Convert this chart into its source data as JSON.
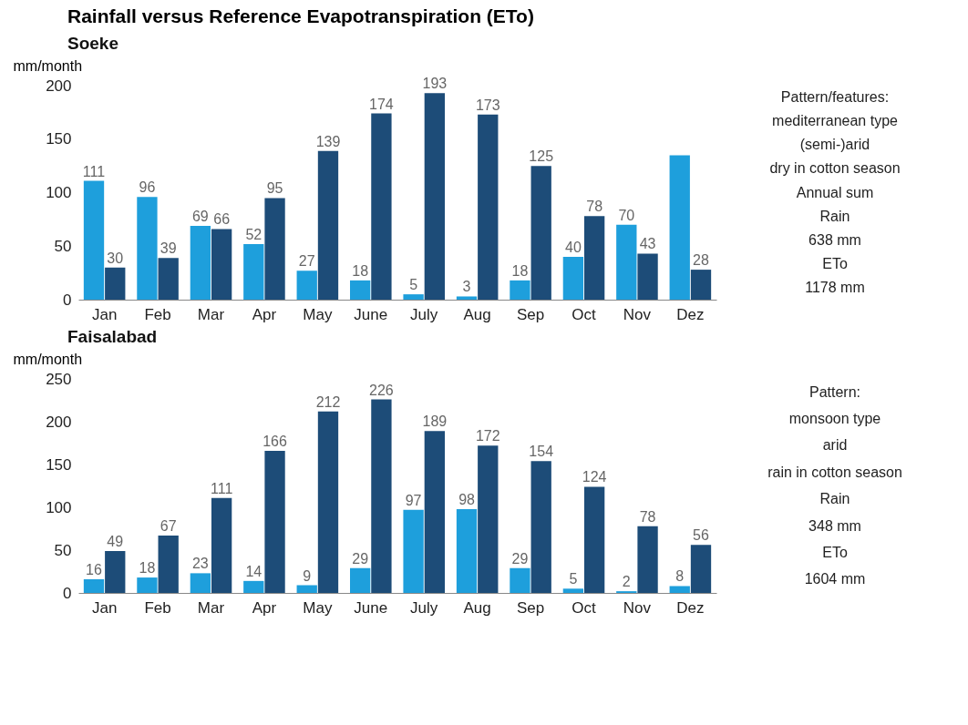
{
  "chart_data": [
    {
      "type": "bar",
      "title": "Rainfall versus Reference Evapotranspiration (ETo)",
      "subtitle": "Soeke",
      "ylabel": "mm/month",
      "categories": [
        "Jan",
        "Feb",
        "Mar",
        "Apr",
        "May",
        "June",
        "July",
        "Aug",
        "Sep",
        "Oct",
        "Nov",
        "Dez"
      ],
      "series": [
        {
          "color": "#1e9fdc",
          "values": [
            111,
            96,
            69,
            52,
            27,
            18,
            5,
            3,
            18,
            40,
            70,
            135
          ],
          "value_labels": [
            "111",
            "96",
            "69",
            "52",
            "27",
            "18",
            "5",
            "3",
            "18",
            "40",
            "70",
            null
          ]
        },
        {
          "color": "#1d4c78",
          "values": [
            30,
            39,
            66,
            95,
            139,
            174,
            193,
            173,
            125,
            78,
            43,
            28
          ],
          "value_labels": [
            "30",
            "39",
            "66",
            "95",
            "139",
            "174",
            "193",
            "173",
            "125",
            "78",
            "43",
            "28"
          ]
        }
      ],
      "ylim": [
        0,
        200
      ],
      "yticks": [
        0,
        50,
        100,
        150,
        200
      ],
      "grid": false,
      "legend": false,
      "annotations": [
        "Pattern/features:",
        "mediterranean type",
        "(semi-)arid",
        "dry in cotton season",
        "Annual sum",
        "Rain",
        "638 mm",
        "ETo",
        "1178 mm"
      ]
    },
    {
      "type": "bar",
      "subtitle": "Faisalabad",
      "ylabel": "mm/month",
      "categories": [
        "Jan",
        "Feb",
        "Mar",
        "Apr",
        "May",
        "June",
        "July",
        "Aug",
        "Sep",
        "Oct",
        "Nov",
        "Dez"
      ],
      "series": [
        {
          "color": "#1e9fdc",
          "values": [
            16,
            18,
            23,
            14,
            9,
            29,
            97,
            98,
            29,
            5,
            2,
            8
          ],
          "value_labels": [
            "16",
            "18",
            "23",
            "14",
            "9",
            "29",
            "97",
            "98",
            "29",
            "5",
            "2",
            "8"
          ]
        },
        {
          "color": "#1d4c78",
          "values": [
            49,
            67,
            111,
            166,
            212,
            226,
            189,
            172,
            154,
            124,
            78,
            56
          ],
          "value_labels": [
            "49",
            "67",
            "111",
            "166",
            "212",
            "226",
            "189",
            "172",
            "154",
            "124",
            "78",
            "56"
          ]
        }
      ],
      "ylim": [
        0,
        250
      ],
      "yticks": [
        0,
        50,
        100,
        150,
        200,
        250
      ],
      "grid": false,
      "legend": false,
      "annotations": [
        "Pattern:",
        "monsoon type",
        "arid",
        "rain in cotton season",
        "Rain",
        "348 mm",
        "ETo",
        "1604 mm"
      ]
    }
  ]
}
